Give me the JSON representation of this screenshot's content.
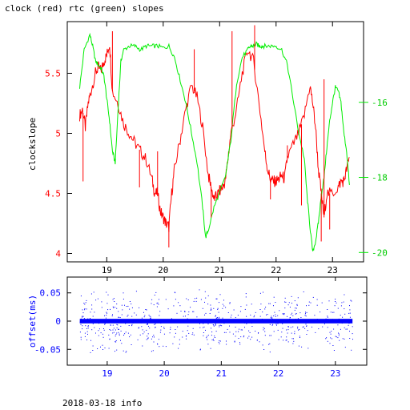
{
  "title": "clock (red) rtc (green) slopes",
  "footer": "2018-03-18 info",
  "chart_data": [
    {
      "type": "line",
      "ylabel": "clockslope",
      "ylim": [
        3.93,
        5.93
      ],
      "y2lim": [
        -20.25,
        -13.85
      ],
      "xlim": [
        18.3,
        23.55
      ],
      "x_ticks": [
        "19",
        "20",
        "21",
        "22",
        "23"
      ],
      "y_ticks": [
        "4",
        "4.5",
        "5",
        "5.5"
      ],
      "y2_ticks": [
        "-20",
        "-18",
        "-16"
      ],
      "colors": {
        "clock": "#ff0000",
        "rtc": "#00ee00",
        "axis": "#000000"
      },
      "series": [
        {
          "color": "#ff0000",
          "axis": "left",
          "x": [
            18.52,
            18.57,
            18.62,
            18.67,
            18.72,
            18.8,
            18.85,
            18.9,
            18.95,
            19.0,
            19.05,
            19.1,
            19.2,
            19.3,
            19.4,
            19.5,
            19.6,
            19.7,
            19.8,
            19.85,
            19.9,
            19.95,
            20.0,
            20.05,
            20.1,
            20.15,
            20.2,
            20.3,
            20.4,
            20.5,
            20.6,
            20.7,
            20.8,
            20.85,
            20.9,
            20.95,
            21.0,
            21.05,
            21.1,
            21.15,
            21.2,
            21.3,
            21.4,
            21.5,
            21.6,
            21.7,
            21.8,
            21.85,
            21.9,
            21.95,
            22.0,
            22.05,
            22.1,
            22.15,
            22.2,
            22.3,
            22.4,
            22.5,
            22.6,
            22.65,
            22.7,
            22.75,
            22.8,
            22.85,
            22.9,
            23.0,
            23.1,
            23.15,
            23.2,
            23.25,
            23.3
          ],
          "values": [
            5.15,
            5.2,
            5.05,
            5.25,
            5.35,
            5.5,
            5.55,
            5.52,
            5.6,
            5.65,
            5.75,
            5.35,
            5.25,
            5.08,
            5.0,
            4.92,
            4.85,
            4.78,
            4.62,
            4.5,
            4.5,
            4.35,
            4.3,
            4.25,
            4.22,
            4.5,
            4.7,
            4.95,
            5.2,
            5.4,
            5.3,
            5.05,
            4.65,
            4.55,
            4.45,
            4.48,
            4.52,
            4.55,
            4.6,
            4.8,
            5.0,
            5.2,
            5.5,
            5.7,
            5.6,
            5.25,
            4.85,
            4.7,
            4.62,
            4.6,
            4.6,
            4.62,
            4.65,
            4.62,
            4.8,
            4.9,
            5.0,
            5.15,
            5.4,
            5.25,
            5.05,
            4.7,
            4.5,
            4.3,
            4.5,
            4.5,
            4.55,
            4.6,
            4.6,
            4.7,
            4.8
          ]
        },
        {
          "color": "#00ee00",
          "axis": "right",
          "x": [
            18.52,
            18.6,
            18.7,
            18.75,
            18.8,
            18.85,
            18.9,
            18.95,
            19.0,
            19.05,
            19.1,
            19.15,
            19.2,
            19.25,
            19.3,
            19.4,
            19.5,
            19.6,
            19.7,
            19.8,
            19.9,
            20.0,
            20.1,
            20.2,
            20.3,
            20.4,
            20.5,
            20.6,
            20.7,
            20.75,
            20.8,
            20.9,
            21.0,
            21.1,
            21.2,
            21.3,
            21.4,
            21.5,
            21.55,
            21.6,
            21.65,
            21.7,
            21.75,
            21.8,
            21.9,
            22.0,
            22.1,
            22.2,
            22.3,
            22.4,
            22.5,
            22.55,
            22.6,
            22.65,
            22.7,
            22.75,
            22.8,
            22.85,
            22.9,
            22.95,
            23.0,
            23.05,
            23.1,
            23.15,
            23.2,
            23.25,
            23.3
          ],
          "values": [
            -15.6,
            -14.6,
            -14.2,
            -14.5,
            -14.9,
            -15.0,
            -15.1,
            -15.3,
            -15.9,
            -16.5,
            -17.3,
            -17.6,
            -16.2,
            -14.9,
            -14.6,
            -14.5,
            -14.5,
            -14.6,
            -14.5,
            -14.5,
            -14.5,
            -14.55,
            -14.5,
            -14.8,
            -15.4,
            -16.0,
            -16.8,
            -17.6,
            -18.8,
            -19.6,
            -19.4,
            -18.8,
            -18.4,
            -18.0,
            -17.0,
            -15.5,
            -14.8,
            -14.6,
            -14.5,
            -14.5,
            -14.45,
            -14.5,
            -14.5,
            -14.5,
            -14.5,
            -14.5,
            -14.6,
            -15.0,
            -15.9,
            -16.8,
            -17.5,
            -18.5,
            -19.3,
            -20.0,
            -19.7,
            -19.2,
            -18.5,
            -18.0,
            -17.2,
            -16.5,
            -16.0,
            -15.6,
            -15.7,
            -16.0,
            -16.8,
            -17.3,
            -18.2
          ]
        }
      ]
    },
    {
      "type": "scatter",
      "ylabel": "offset(ms)",
      "ylim": [
        -0.078,
        0.078
      ],
      "xlim": [
        18.3,
        23.55
      ],
      "x_ticks": [
        "19",
        "20",
        "21",
        "22",
        "23"
      ],
      "y_ticks": [
        "-0.05",
        "0",
        "0.05"
      ],
      "colors": {
        "points": "#0000ff"
      },
      "point_band": {
        "x_start": 18.52,
        "x_end": 23.3,
        "dense_amplitude": 0.004,
        "sparse_amplitude": 0.06
      }
    }
  ]
}
